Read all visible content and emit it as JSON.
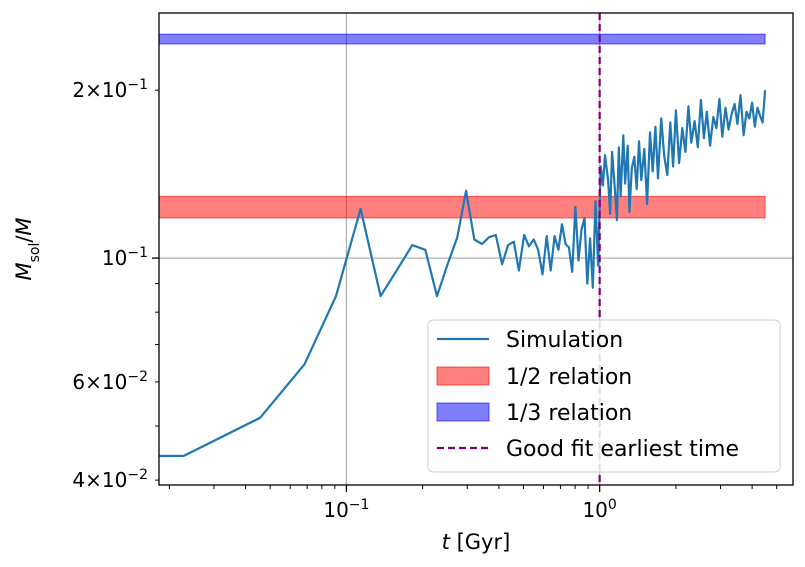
{
  "chart_data": {
    "type": "line",
    "xscale": "log",
    "yscale": "log",
    "xlabel": "t [Gyr]",
    "ylabel": "M_sol/M",
    "xlim": [
      0.0182,
      5.8
    ],
    "ylim": [
      0.0392,
      0.275
    ],
    "grid": "major",
    "x_major_ticks": [
      {
        "value": 0.1,
        "base": "10",
        "exp": "−1"
      },
      {
        "value": 1.0,
        "base": "10",
        "exp": "0"
      }
    ],
    "y_major_ticks": [
      {
        "value": 0.1,
        "base": "10",
        "exp": "−1"
      }
    ],
    "y_minor_labeled_ticks": [
      {
        "value": 0.04,
        "mantissa": "4",
        "base": "10",
        "exp": "−2"
      },
      {
        "value": 0.06,
        "mantissa": "6",
        "base": "10",
        "exp": "−2"
      },
      {
        "value": 0.2,
        "mantissa": "2",
        "base": "10",
        "exp": "−1"
      }
    ],
    "series": [
      {
        "name": "Simulation",
        "kind": "line",
        "color": "#1f77b4",
        "x": [
          0.0182,
          0.0228,
          0.0456,
          0.0683,
          0.091,
          0.1138,
          0.1365,
          0.159,
          0.182,
          0.205,
          0.228,
          0.251,
          0.274,
          0.297,
          0.32,
          0.343,
          0.366,
          0.389,
          0.412,
          0.435,
          0.458,
          0.48,
          0.503,
          0.526,
          0.549,
          0.572,
          0.595,
          0.618,
          0.641,
          0.664,
          0.687,
          0.71,
          0.733,
          0.756,
          0.779,
          0.802,
          0.825,
          0.848,
          0.871,
          0.894,
          0.917,
          0.94,
          0.963,
          0.986,
          1.01,
          1.03,
          1.05,
          1.08,
          1.1,
          1.12,
          1.15,
          1.17,
          1.19,
          1.21,
          1.24,
          1.26,
          1.29,
          1.31,
          1.34,
          1.37,
          1.4,
          1.43,
          1.46,
          1.5,
          1.54,
          1.58,
          1.62,
          1.66,
          1.7,
          1.75,
          1.8,
          1.85,
          1.9,
          1.95,
          2.0,
          2.06,
          2.12,
          2.18,
          2.24,
          2.3,
          2.37,
          2.44,
          2.51,
          2.58,
          2.65,
          2.73,
          2.81,
          2.89,
          2.97,
          3.05,
          3.14,
          3.23,
          3.32,
          3.41,
          3.5,
          3.6,
          3.7,
          3.8,
          3.9,
          4.0,
          4.1,
          4.2,
          4.3,
          4.4,
          4.5
        ],
        "y": [
          0.0442,
          0.0442,
          0.0517,
          0.0645,
          0.0855,
          0.1225,
          0.0855,
          0.0955,
          0.1055,
          0.1035,
          0.0855,
          0.0975,
          0.109,
          0.132,
          0.108,
          0.106,
          0.109,
          0.11,
          0.0975,
          0.1055,
          0.107,
          0.095,
          0.11,
          0.105,
          0.108,
          0.1035,
          0.0935,
          0.1095,
          0.095,
          0.1095,
          0.1035,
          0.115,
          0.106,
          0.1045,
          0.0945,
          0.1235,
          0.099,
          0.1125,
          0.118,
          0.09,
          0.1085,
          0.0885,
          0.1265,
          0.097,
          0.146,
          0.135,
          0.153,
          0.138,
          0.12,
          0.155,
          0.132,
          0.117,
          0.158,
          0.129,
          0.166,
          0.136,
          0.159,
          0.121,
          0.145,
          0.152,
          0.133,
          0.162,
          0.138,
          0.157,
          0.125,
          0.168,
          0.143,
          0.172,
          0.139,
          0.178,
          0.152,
          0.141,
          0.175,
          0.146,
          0.184,
          0.148,
          0.171,
          0.155,
          0.187,
          0.161,
          0.176,
          0.158,
          0.192,
          0.164,
          0.183,
          0.159,
          0.179,
          0.171,
          0.193,
          0.165,
          0.186,
          0.17,
          0.181,
          0.189,
          0.174,
          0.196,
          0.166,
          0.183,
          0.178,
          0.19,
          0.172,
          0.186,
          0.18,
          0.175,
          0.2
        ]
      },
      {
        "name": "1/2 relation",
        "kind": "band",
        "color": "#ff0000",
        "alpha": 0.5,
        "x_range": [
          0.0182,
          4.5
        ],
        "y_range": [
          0.118,
          0.129
        ]
      },
      {
        "name": "1/3 relation",
        "kind": "band",
        "color": "#0000ff",
        "alpha": 0.5,
        "x_range": [
          0.0182,
          4.5
        ],
        "y_range": [
          0.242,
          0.252
        ]
      },
      {
        "name": "Good fit earliest time",
        "kind": "vline",
        "color": "#800080",
        "linestyle": "dashed",
        "x": 1.0
      }
    ],
    "legend": {
      "position": "lower-right",
      "entries": [
        "Simulation",
        "1/2 relation",
        "1/3 relation",
        "Good fit earliest time"
      ]
    }
  }
}
